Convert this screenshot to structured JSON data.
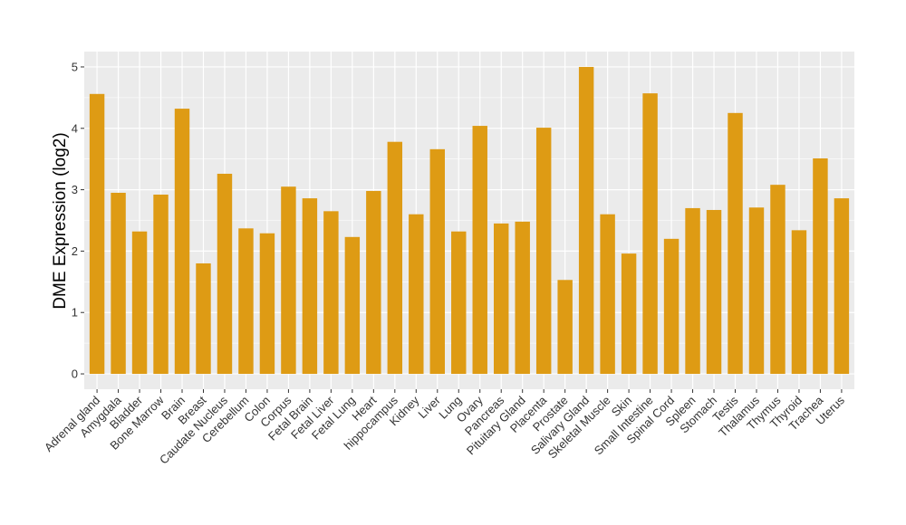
{
  "chart_data": {
    "type": "bar",
    "title": "",
    "xlabel": "",
    "ylabel": "DME Expression (log2)",
    "ylim": [
      -0.25,
      5.25
    ],
    "yticks": [
      0,
      1,
      2,
      3,
      4,
      5
    ],
    "grid": true,
    "bar_color": "#DE9B14",
    "panel_color": "#EBEBEB",
    "categories": [
      "Adrenal gland",
      "Amygdala",
      "Bladder",
      "Bone Marrow",
      "Brain",
      "Breast",
      "Caudate Nucleus",
      "Cerebellum",
      "Colon",
      "Corpus",
      "Fetal Brain",
      "Fetal Liver",
      "Fetal Lung",
      "Heart",
      "hippocampus",
      "Kidney",
      "Liver",
      "Lung",
      "Ovary",
      "Pancreas",
      "Pituitary Gland",
      "Placenta",
      "Prostate",
      "Salivary Gland",
      "Skeletal Muscle",
      "Skin",
      "Small Intestine",
      "Spinal Cord",
      "Spleen",
      "Stomach",
      "Testis",
      "Thalamus",
      "Thymus",
      "Thyroid",
      "Trachea",
      "Uterus"
    ],
    "values": [
      4.56,
      2.95,
      2.32,
      2.92,
      4.32,
      1.8,
      3.26,
      2.37,
      2.29,
      3.05,
      2.86,
      2.65,
      2.23,
      2.98,
      3.78,
      2.6,
      3.66,
      2.32,
      4.04,
      2.45,
      2.48,
      4.01,
      1.53,
      5.0,
      2.6,
      1.96,
      4.57,
      2.2,
      2.7,
      2.67,
      4.25,
      2.71,
      3.08,
      2.34,
      3.51,
      2.86
    ]
  }
}
